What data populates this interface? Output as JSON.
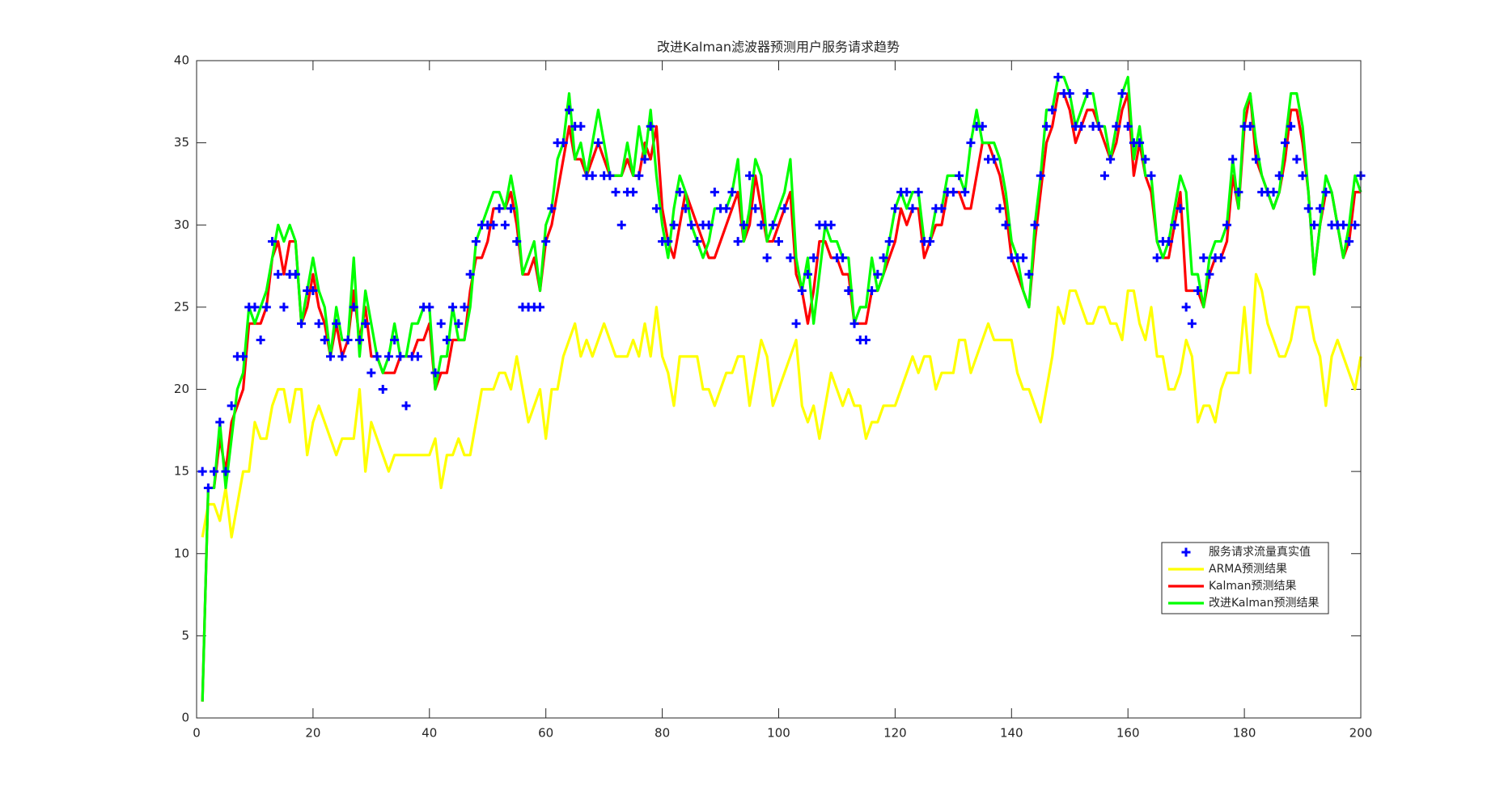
{
  "chart_data": {
    "type": "line",
    "title": "改进Kalman滤波器预测用户服务请求趋势",
    "x": [
      1,
      2,
      3,
      4,
      5,
      6,
      7,
      8,
      9,
      10,
      11,
      12,
      13,
      14,
      15,
      16,
      17,
      18,
      19,
      20,
      21,
      22,
      23,
      24,
      25,
      26,
      27,
      28,
      29,
      30,
      31,
      32,
      33,
      34,
      35,
      36,
      37,
      38,
      39,
      40,
      41,
      42,
      43,
      44,
      45,
      46,
      47,
      48,
      49,
      50,
      51,
      52,
      53,
      54,
      55,
      56,
      57,
      58,
      59,
      60,
      61,
      62,
      63,
      64,
      65,
      66,
      67,
      68,
      69,
      70,
      71,
      72,
      73,
      74,
      75,
      76,
      77,
      78,
      79,
      80,
      81,
      82,
      83,
      84,
      85,
      86,
      87,
      88,
      89,
      90,
      91,
      92,
      93,
      94,
      95,
      96,
      97,
      98,
      99,
      100,
      101,
      102,
      103,
      104,
      105,
      106,
      107,
      108,
      109,
      110,
      111,
      112,
      113,
      114,
      115,
      116,
      117,
      118,
      119,
      120,
      121,
      122,
      123,
      124,
      125,
      126,
      127,
      128,
      129,
      130,
      131,
      132,
      133,
      134,
      135,
      136,
      137,
      138,
      139,
      140,
      141,
      142,
      143,
      144,
      145,
      146,
      147,
      148,
      149,
      150,
      151,
      152,
      153,
      154,
      155,
      156,
      157,
      158,
      159,
      160,
      161,
      162,
      163,
      164,
      165,
      166,
      167,
      168,
      169,
      170,
      171,
      172,
      173,
      174,
      175,
      176,
      177,
      178,
      179,
      180,
      181,
      182,
      183,
      184,
      185,
      186,
      187,
      188,
      189,
      190,
      191,
      192,
      193,
      194,
      195,
      196,
      197,
      198,
      199,
      200
    ],
    "series": [
      {
        "name": "服务请求流量真实值",
        "color": "#0000ff",
        "marker": "+",
        "values": [
          15,
          14,
          15,
          18,
          15,
          19,
          22,
          22,
          25,
          25,
          23,
          25,
          29,
          27,
          25,
          27,
          27,
          24,
          26,
          26,
          24,
          23,
          22,
          24,
          22,
          23,
          25,
          23,
          24,
          21,
          22,
          20,
          22,
          23,
          22,
          19,
          22,
          22,
          25,
          25,
          21,
          24,
          23,
          25,
          24,
          25,
          27,
          29,
          30,
          30,
          30,
          31,
          30,
          31,
          29,
          25,
          25,
          25,
          25,
          29,
          31,
          35,
          35,
          37,
          36,
          36,
          33,
          33,
          35,
          33,
          33,
          32,
          30,
          32,
          32,
          33,
          34,
          36,
          31,
          29,
          29,
          30,
          32,
          31,
          30,
          29,
          30,
          30,
          32,
          31,
          31,
          32,
          29,
          30,
          33,
          31,
          30,
          28,
          30,
          29,
          31,
          28,
          24,
          26,
          27,
          28,
          30,
          30,
          30,
          28,
          28,
          26,
          24,
          23,
          23,
          26,
          27,
          28,
          29,
          31,
          32,
          32,
          31,
          32,
          29,
          29,
          31,
          31,
          32,
          32,
          33,
          32,
          35,
          36,
          36,
          34,
          34,
          31,
          30,
          28,
          28,
          28,
          27,
          30,
          33,
          36,
          37,
          39,
          38,
          38,
          36,
          36,
          38,
          36,
          36,
          33,
          34,
          36,
          38,
          36,
          35,
          35,
          34,
          33,
          28,
          29,
          29,
          30,
          31,
          25,
          24,
          26,
          28,
          27,
          28,
          28,
          30,
          34,
          32,
          36,
          36,
          34,
          32,
          32,
          32,
          33,
          35,
          36,
          34,
          33,
          31,
          30,
          31,
          32,
          30,
          30,
          30,
          29,
          30,
          33
        ]
      },
      {
        "name": "ARMA预测结果",
        "color": "#ffff00",
        "values": [
          11,
          13,
          13,
          12,
          14,
          11,
          13,
          15,
          15,
          18,
          17,
          17,
          19,
          20,
          20,
          18,
          20,
          20,
          16,
          18,
          19,
          18,
          17,
          16,
          17,
          17,
          17,
          20,
          15,
          18,
          17,
          16,
          15,
          16,
          16,
          16,
          16,
          16,
          16,
          16,
          17,
          14,
          16,
          16,
          17,
          16,
          16,
          18,
          20,
          20,
          20,
          21,
          21,
          20,
          22,
          20,
          18,
          19,
          20,
          17,
          20,
          20,
          22,
          23,
          24,
          22,
          23,
          22,
          23,
          24,
          23,
          22,
          22,
          22,
          23,
          22,
          24,
          22,
          25,
          22,
          21,
          19,
          22,
          22,
          22,
          22,
          20,
          20,
          19,
          20,
          21,
          21,
          22,
          22,
          19,
          21,
          23,
          22,
          19,
          20,
          21,
          22,
          23,
          19,
          18,
          19,
          17,
          19,
          21,
          20,
          19,
          20,
          19,
          19,
          17,
          18,
          18,
          19,
          19,
          19,
          20,
          21,
          22,
          21,
          22,
          22,
          20,
          21,
          21,
          21,
          23,
          23,
          21,
          22,
          23,
          24,
          23,
          23,
          23,
          23,
          21,
          20,
          20,
          19,
          18,
          20,
          22,
          25,
          24,
          26,
          26,
          25,
          24,
          24,
          25,
          25,
          24,
          24,
          23,
          26,
          26,
          24,
          23,
          25,
          22,
          22,
          20,
          20,
          21,
          23,
          22,
          18,
          19,
          19,
          18,
          20,
          21,
          21,
          21,
          25,
          21,
          27,
          26,
          24,
          23,
          22,
          22,
          23,
          25,
          25,
          25,
          23,
          22,
          19,
          22,
          23,
          22,
          21,
          20,
          22
        ]
      },
      {
        "name": "Kalman预测结果",
        "color": "#ff0000",
        "values": [
          1,
          14,
          14,
          17,
          15,
          18,
          19,
          20,
          24,
          24,
          24,
          25,
          28,
          29,
          27,
          29,
          29,
          24,
          25,
          27,
          25,
          24,
          22,
          24,
          22,
          23,
          26,
          23,
          25,
          22,
          22,
          21,
          21,
          21,
          22,
          22,
          22,
          23,
          23,
          24,
          20,
          21,
          21,
          23,
          23,
          23,
          26,
          28,
          28,
          29,
          31,
          31,
          31,
          32,
          30,
          27,
          27,
          28,
          26,
          29,
          30,
          32,
          34,
          36,
          34,
          34,
          33,
          34,
          35,
          34,
          33,
          33,
          33,
          34,
          33,
          33,
          35,
          34,
          36,
          31,
          29,
          28,
          30,
          32,
          31,
          30,
          29,
          28,
          28,
          29,
          30,
          31,
          32,
          29,
          30,
          33,
          31,
          29,
          29,
          30,
          31,
          32,
          27,
          26,
          24,
          26,
          29,
          29,
          28,
          28,
          27,
          27,
          24,
          24,
          24,
          26,
          26,
          27,
          28,
          29,
          31,
          30,
          31,
          31,
          28,
          29,
          30,
          30,
          32,
          32,
          32,
          31,
          31,
          33,
          35,
          35,
          34,
          33,
          31,
          28,
          27,
          26,
          25,
          29,
          32,
          35,
          36,
          38,
          38,
          37,
          35,
          36,
          37,
          37,
          36,
          35,
          34,
          35,
          37,
          38,
          33,
          35,
          33,
          32,
          29,
          28,
          28,
          30,
          32,
          26,
          26,
          26,
          25,
          27,
          28,
          28,
          29,
          33,
          31,
          36,
          38,
          34,
          33,
          32,
          31,
          32,
          34,
          37,
          37,
          35,
          32,
          27,
          30,
          32,
          32,
          30,
          28,
          29,
          32,
          32
        ]
      },
      {
        "name": "改进Kalman预测结果",
        "color": "#00ff00",
        "values": [
          1,
          14,
          14,
          18,
          14,
          17,
          20,
          21,
          25,
          24,
          25,
          26,
          28,
          30,
          29,
          30,
          29,
          24,
          26,
          28,
          26,
          25,
          22,
          25,
          23,
          23,
          28,
          22,
          26,
          24,
          22,
          21,
          22,
          24,
          22,
          22,
          24,
          24,
          25,
          25,
          20,
          22,
          22,
          25,
          23,
          23,
          25,
          29,
          30,
          31,
          32,
          32,
          31,
          33,
          31,
          27,
          28,
          29,
          26,
          30,
          31,
          34,
          35,
          38,
          34,
          35,
          33,
          35,
          37,
          35,
          33,
          33,
          33,
          35,
          33,
          36,
          34,
          37,
          33,
          30,
          28,
          31,
          33,
          32,
          30,
          29,
          28,
          29,
          31,
          31,
          31,
          32,
          34,
          29,
          31,
          34,
          33,
          29,
          30,
          31,
          32,
          34,
          28,
          26,
          28,
          24,
          27,
          30,
          29,
          29,
          28,
          28,
          24,
          25,
          25,
          28,
          26,
          27,
          29,
          31,
          32,
          31,
          32,
          32,
          29,
          29,
          31,
          31,
          33,
          33,
          33,
          32,
          35,
          37,
          35,
          35,
          35,
          34,
          32,
          29,
          28,
          26,
          25,
          30,
          33,
          37,
          37,
          39,
          39,
          38,
          36,
          37,
          38,
          38,
          36,
          36,
          34,
          36,
          38,
          39,
          34,
          36,
          33,
          33,
          29,
          28,
          29,
          31,
          33,
          32,
          27,
          27,
          25,
          28,
          29,
          29,
          30,
          34,
          31,
          37,
          38,
          35,
          33,
          32,
          31,
          32,
          35,
          38,
          38,
          36,
          32,
          27,
          30,
          33,
          32,
          30,
          28,
          30,
          33,
          32
        ]
      }
    ],
    "xlim": [
      0,
      200
    ],
    "xticks": [
      0,
      20,
      40,
      60,
      80,
      100,
      120,
      140,
      160,
      180,
      200
    ],
    "ylim": [
      0,
      40
    ],
    "yticks": [
      0,
      5,
      10,
      15,
      20,
      25,
      30,
      35,
      40
    ],
    "legend_location": "east"
  }
}
